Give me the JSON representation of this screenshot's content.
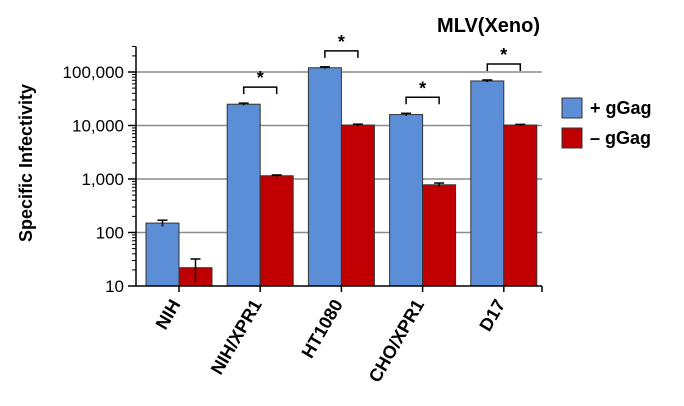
{
  "chart_data": {
    "type": "bar",
    "title": "MLV(Xeno)",
    "ylabel": "Specific Infectivity",
    "xlabel": "",
    "yscale": "log",
    "ylim": [
      10,
      300000
    ],
    "grid": true,
    "categories": [
      "NIH",
      "NIH/XPR1",
      "HT1080",
      "CHO/XPR1",
      "D17"
    ],
    "series": [
      {
        "name": "+ gGag",
        "color": "#5B8ED6",
        "values": [
          150,
          25000,
          120000,
          16000,
          68000
        ],
        "errors": [
          20,
          1200,
          5000,
          900,
          3000
        ]
      },
      {
        "name": "– gGag",
        "color": "#C00000",
        "values": [
          22,
          1150,
          10200,
          780,
          10200
        ],
        "errors": [
          10,
          40,
          400,
          60,
          300
        ]
      }
    ],
    "yticks": [
      10,
      100,
      1000,
      10000,
      100000
    ],
    "ytick_labels": [
      "10",
      "100",
      "1,000",
      "10,000",
      "100,000"
    ],
    "significance": [
      {
        "category": "NIH/XPR1",
        "label": "*"
      },
      {
        "category": "HT1080",
        "label": "*"
      },
      {
        "category": "CHO/XPR1",
        "label": "*"
      },
      {
        "category": "D17",
        "label": "*"
      }
    ],
    "legend_position": "right"
  }
}
